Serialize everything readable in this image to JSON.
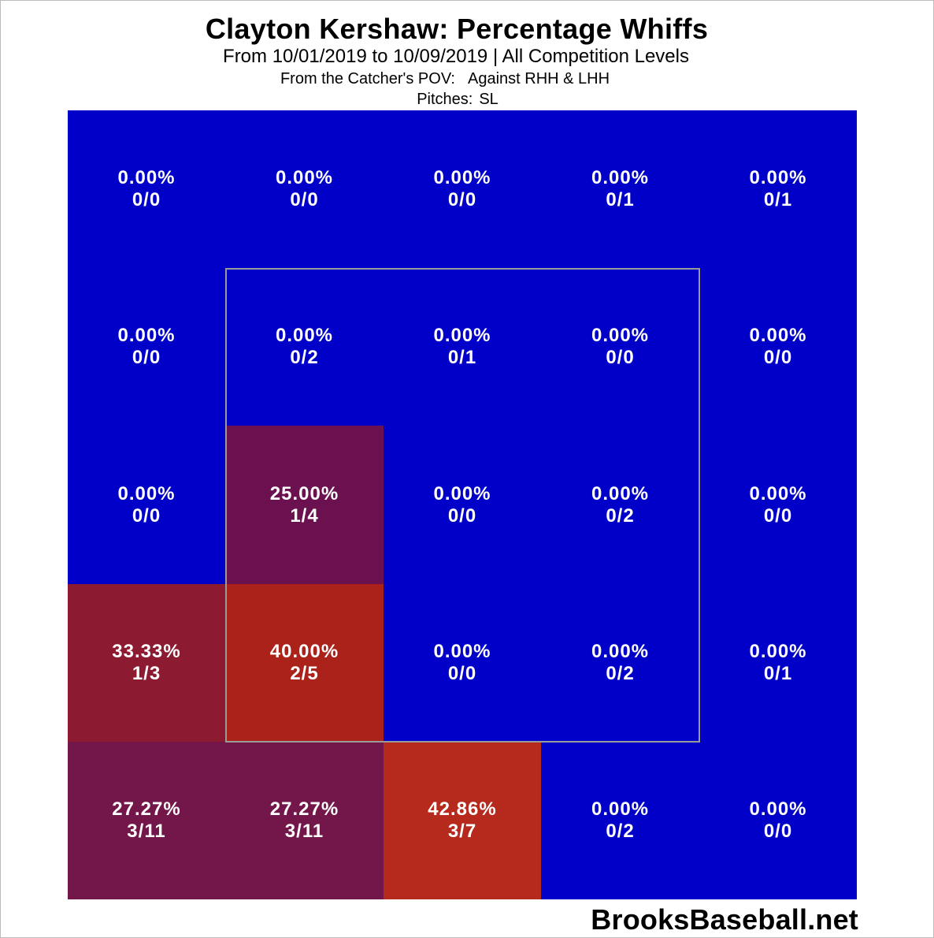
{
  "chart_data": {
    "type": "heatmap",
    "title": "Clayton Kershaw: Percentage Whiffs",
    "subtitle": "From 10/01/2019 to 10/09/2019 | All Competition Levels",
    "pov_label": "From the Catcher's POV:",
    "batter_label": "Against RHH & LHH",
    "pitches_label": "Pitches:",
    "pitches_value": "SL",
    "rows": 5,
    "cols": 5,
    "cells": [
      [
        {
          "pct": "0.00%",
          "count": "0/0",
          "color": "#0000c8"
        },
        {
          "pct": "0.00%",
          "count": "0/0",
          "color": "#0000c8"
        },
        {
          "pct": "0.00%",
          "count": "0/0",
          "color": "#0000c8"
        },
        {
          "pct": "0.00%",
          "count": "0/1",
          "color": "#0000c8"
        },
        {
          "pct": "0.00%",
          "count": "0/1",
          "color": "#0000c8"
        }
      ],
      [
        {
          "pct": "0.00%",
          "count": "0/0",
          "color": "#0000c8"
        },
        {
          "pct": "0.00%",
          "count": "0/2",
          "color": "#0000c8"
        },
        {
          "pct": "0.00%",
          "count": "0/1",
          "color": "#0000c8"
        },
        {
          "pct": "0.00%",
          "count": "0/0",
          "color": "#0000c8"
        },
        {
          "pct": "0.00%",
          "count": "0/0",
          "color": "#0000c8"
        }
      ],
      [
        {
          "pct": "0.00%",
          "count": "0/0",
          "color": "#0000c8"
        },
        {
          "pct": "25.00%",
          "count": "1/4",
          "color": "#6b1150"
        },
        {
          "pct": "0.00%",
          "count": "0/0",
          "color": "#0000c8"
        },
        {
          "pct": "0.00%",
          "count": "0/2",
          "color": "#0000c8"
        },
        {
          "pct": "0.00%",
          "count": "0/0",
          "color": "#0000c8"
        }
      ],
      [
        {
          "pct": "33.33%",
          "count": "1/3",
          "color": "#8c1a30"
        },
        {
          "pct": "40.00%",
          "count": "2/5",
          "color": "#ab221a"
        },
        {
          "pct": "0.00%",
          "count": "0/0",
          "color": "#0000c8"
        },
        {
          "pct": "0.00%",
          "count": "0/2",
          "color": "#0000c8"
        },
        {
          "pct": "0.00%",
          "count": "0/1",
          "color": "#0000c8"
        }
      ],
      [
        {
          "pct": "27.27%",
          "count": "3/11",
          "color": "#73164a"
        },
        {
          "pct": "27.27%",
          "count": "3/11",
          "color": "#73164a"
        },
        {
          "pct": "42.86%",
          "count": "3/7",
          "color": "#b52a1c"
        },
        {
          "pct": "0.00%",
          "count": "0/2",
          "color": "#0000c8"
        },
        {
          "pct": "0.00%",
          "count": "0/0",
          "color": "#0000c8"
        }
      ]
    ],
    "strike_zone": {
      "row_start": 1,
      "row_end": 3,
      "col_start": 1,
      "col_end": 3
    },
    "grid": false,
    "legend": "none"
  },
  "watermark": "BrooksBaseball.net"
}
